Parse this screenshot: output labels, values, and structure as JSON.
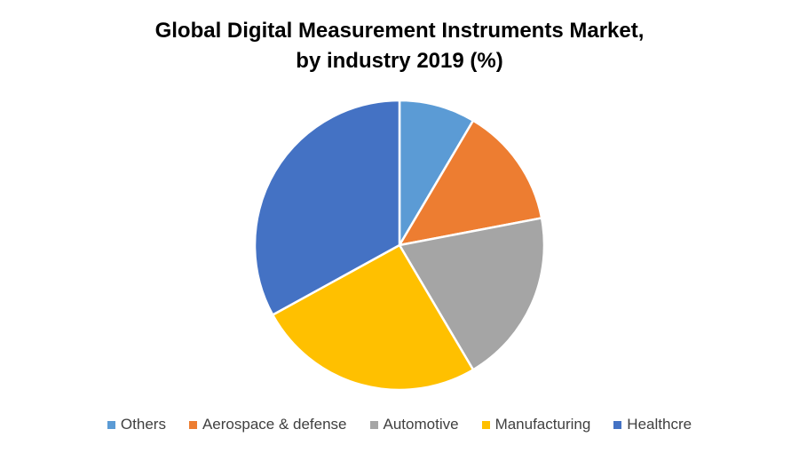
{
  "chart_data": {
    "type": "pie",
    "title_line1": "Global Digital Measurement Instruments Market,",
    "title_line2": "by industry 2019 (%)",
    "categories": [
      "Others",
      "Aerospace & defense",
      "Automotive",
      "Manufacturing",
      "Healthcre"
    ],
    "values": [
      8.5,
      13.5,
      19.5,
      25.5,
      33
    ],
    "colors": [
      "#5B9BD5",
      "#ED7D31",
      "#A5A5A5",
      "#FFC000",
      "#4472C4"
    ],
    "legend_position": "bottom"
  }
}
